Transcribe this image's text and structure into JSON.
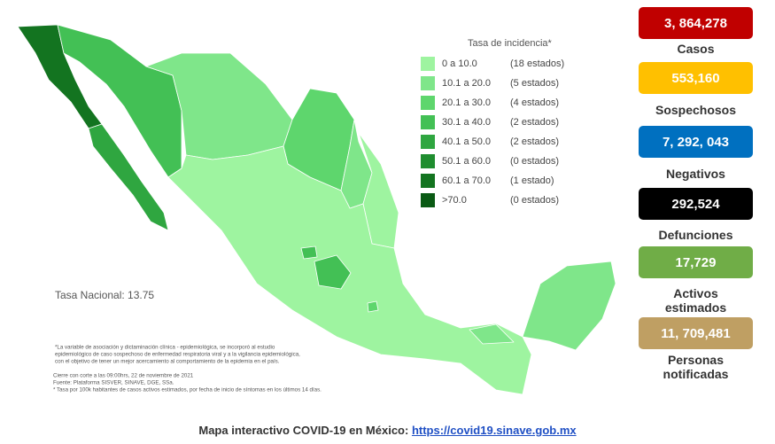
{
  "legend": {
    "title": "Tasa de incidencia*",
    "items": [
      {
        "range": "0   a  10.0",
        "count": "(18 estados)",
        "color": "#9ef4a0"
      },
      {
        "range": "10.1  a  20.0",
        "count": "(5 estados)",
        "color": "#7fe68a"
      },
      {
        "range": "20.1  a  30.0",
        "count": "(4 estados)",
        "color": "#5ed66d"
      },
      {
        "range": "30.1  a  40.0",
        "count": "(2 estados)",
        "color": "#43c055"
      },
      {
        "range": "40.1  a  50.0",
        "count": "(2 estados)",
        "color": "#2fa640"
      },
      {
        "range": "50.1  a  60.0",
        "count": "(0 estados)",
        "color": "#1f8d2f"
      },
      {
        "range": "60.1  a  70.0",
        "count": "(1 estado)",
        "color": "#137420"
      },
      {
        "range": ">70.0",
        "count": "(0 estados)",
        "color": "#0a5a14"
      }
    ]
  },
  "national_rate": "Tasa Nacional: 13.75",
  "notes": [
    "*La variable de asociación y dictaminación clínica - epidemiológica, se incorporó al estudio",
    "epidemiológico de caso sospechoso de enfermedad respiratoria viral y a la vigilancia epidemiológica,",
    "con el objetivo de tener un mejor acercamiento al comportamiento de la epidemia en el país.",
    "Cierre con corte a las 09:00hrs, 22 de noviembre de 2021",
    "Fuente: Plataforma SISVER, SINAVE, DGE, SSa.",
    "* Tasa por 100k habitantes de casos activos estimados, por fecha de inicio de síntomas en los últimos 14 días."
  ],
  "stats": [
    {
      "value": "3, 864,278",
      "label": "Casos",
      "color": "#c00000"
    },
    {
      "value": "553,160",
      "label": "Sospechosos",
      "color": "#ffc000"
    },
    {
      "value": "7, 292, 043",
      "label": "Negativos",
      "color": "#0070c0"
    },
    {
      "value": "292,524",
      "label": "Defunciones",
      "color": "#000000"
    },
    {
      "value": "17,729",
      "label": "Activos estimados",
      "color": "#70ad47"
    },
    {
      "value": "11, 709,481",
      "label": "Personas notificadas",
      "color": "#bf9f63"
    }
  ],
  "footer": {
    "text": "Mapa interactivo COVID-19 en México:",
    "link": "https://covid19.sinave.gob.mx"
  }
}
